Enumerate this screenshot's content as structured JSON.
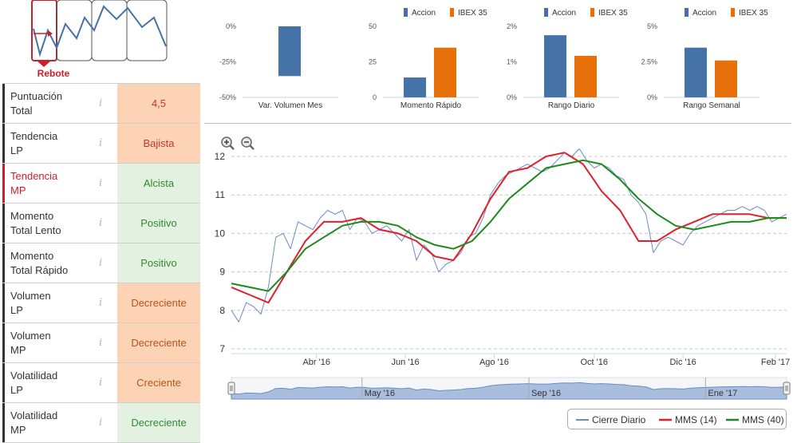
{
  "signal": {
    "label": "Rebote"
  },
  "rows": [
    {
      "label": "Puntuación\nTotal",
      "value": "4,5",
      "bg": "orange",
      "tone": "red",
      "highlight": false
    },
    {
      "label": "Tendencia\nLP",
      "value": "Bajista",
      "bg": "orange",
      "tone": "red",
      "highlight": false
    },
    {
      "label": "Tendencia\nMP",
      "value": "Alcista",
      "bg": "green",
      "tone": "green",
      "highlight": true
    },
    {
      "label": "Momento\nTotal Lento",
      "value": "Positivo",
      "bg": "green",
      "tone": "green",
      "highlight": false
    },
    {
      "label": "Momento\nTotal Rápido",
      "value": "Positivo",
      "bg": "green",
      "tone": "green",
      "highlight": false
    },
    {
      "label": "Volumen\nLP",
      "value": "Decreciente",
      "bg": "orange",
      "tone": "brown",
      "highlight": false
    },
    {
      "label": "Volumen\nMP",
      "value": "Decreciente",
      "bg": "orange",
      "tone": "brown",
      "highlight": false
    },
    {
      "label": "Volatilidad\nLP",
      "value": "Creciente",
      "bg": "orange",
      "tone": "brown",
      "highlight": false
    },
    {
      "label": "Volatilidad\nMP",
      "value": "Decreciente",
      "bg": "green",
      "tone": "green",
      "highlight": false
    }
  ],
  "info_glyph": "i",
  "colors": {
    "accion": "#4572a7",
    "ibex": "#e8700a",
    "cierre": "#6b8cc4",
    "mms14": "#e0202a",
    "mms40": "#1a8a1a",
    "signal": "#cc1f2d"
  },
  "chart_data": [
    {
      "type": "bar",
      "title": "Var. Volumen Mes",
      "legend": [
        "Accion"
      ],
      "yticks": [
        "0%",
        "-25%",
        "-50%"
      ],
      "ylim": [
        -50,
        0
      ],
      "series": [
        {
          "name": "Accion",
          "values": [
            -35
          ]
        }
      ]
    },
    {
      "type": "bar",
      "title": "Momento Rápido",
      "legend": [
        "Accion",
        "IBEX 35"
      ],
      "yticks": [
        "50",
        "25",
        "0"
      ],
      "ylim": [
        0,
        50
      ],
      "series": [
        {
          "name": "Accion",
          "values": [
            14
          ]
        },
        {
          "name": "IBEX 35",
          "values": [
            35
          ]
        }
      ]
    },
    {
      "type": "bar",
      "title": "Rango Diario",
      "legend": [
        "Accion",
        "IBEX 35"
      ],
      "yticks": [
        "2%",
        "1%",
        "0%"
      ],
      "ylim": [
        0,
        2
      ],
      "series": [
        {
          "name": "Accion",
          "values": [
            1.75
          ]
        },
        {
          "name": "IBEX 35",
          "values": [
            1.17
          ]
        }
      ]
    },
    {
      "type": "bar",
      "title": "Rango Semanal",
      "legend": [
        "Accion",
        "IBEX 35"
      ],
      "yticks": [
        "5%",
        "2.5%",
        "0%"
      ],
      "ylim": [
        0,
        5
      ],
      "series": [
        {
          "name": "Accion",
          "values": [
            3.5
          ]
        },
        {
          "name": "IBEX 35",
          "values": [
            2.6
          ]
        }
      ]
    },
    {
      "type": "line",
      "title": "",
      "yticks": [
        "12",
        "11",
        "10",
        "9",
        "8",
        "7"
      ],
      "ylim": [
        7,
        12.3
      ],
      "xlabels": [
        "Abr '16",
        "Jun '16",
        "Ago '16",
        "Oct '16",
        "Dic '16",
        "Feb '17"
      ],
      "xlabel_pos": [
        0.23,
        0.47,
        0.71,
        0.98,
        1.22,
        1.47
      ],
      "xrange": [
        0,
        1.5
      ],
      "navigator_labels": [
        "May '16",
        "Sep '16",
        "Ene '17"
      ],
      "navigator_pos": [
        0.353,
        0.804,
        1.281
      ],
      "series": [
        {
          "name": "Cierre Diario",
          "x": [
            0,
            0.02,
            0.04,
            0.06,
            0.08,
            0.1,
            0.12,
            0.14,
            0.16,
            0.18,
            0.2,
            0.22,
            0.24,
            0.26,
            0.28,
            0.3,
            0.32,
            0.34,
            0.36,
            0.38,
            0.4,
            0.42,
            0.44,
            0.46,
            0.48,
            0.5,
            0.52,
            0.54,
            0.56,
            0.58,
            0.6,
            0.62,
            0.64,
            0.66,
            0.68,
            0.7,
            0.72,
            0.74,
            0.76,
            0.78,
            0.8,
            0.82,
            0.84,
            0.86,
            0.88,
            0.9,
            0.92,
            0.94,
            0.96,
            0.98,
            1.0,
            1.02,
            1.04,
            1.06,
            1.08,
            1.1,
            1.12,
            1.14,
            1.16,
            1.18,
            1.2,
            1.22,
            1.24,
            1.26,
            1.28,
            1.3,
            1.32,
            1.34,
            1.36,
            1.38,
            1.4,
            1.42,
            1.44,
            1.46,
            1.48,
            1.5
          ],
          "values": [
            8.0,
            7.7,
            8.2,
            8.1,
            7.9,
            8.6,
            9.9,
            10.0,
            9.6,
            10.3,
            10.2,
            10.1,
            10.4,
            10.6,
            10.5,
            10.6,
            10.1,
            10.4,
            10.3,
            10.0,
            10.1,
            10.2,
            10.0,
            9.8,
            10.1,
            9.3,
            9.7,
            9.5,
            9.0,
            9.2,
            9.3,
            9.5,
            9.9,
            10.0,
            10.4,
            11.0,
            11.3,
            11.5,
            11.6,
            11.7,
            11.8,
            11.7,
            11.6,
            11.7,
            11.9,
            12.1,
            12.0,
            12.2,
            11.9,
            11.7,
            11.8,
            11.7,
            11.5,
            11.4,
            11.0,
            10.8,
            10.5,
            9.5,
            9.8,
            9.9,
            9.8,
            9.7,
            10.0,
            10.2,
            10.3,
            10.4,
            10.5,
            10.6,
            10.6,
            10.7,
            10.6,
            10.7,
            10.6,
            10.3,
            10.4,
            10.5
          ]
        },
        {
          "name": "MMS (14)",
          "x": [
            0,
            0.05,
            0.1,
            0.15,
            0.2,
            0.25,
            0.3,
            0.35,
            0.4,
            0.45,
            0.5,
            0.55,
            0.6,
            0.65,
            0.7,
            0.75,
            0.8,
            0.85,
            0.9,
            0.95,
            1.0,
            1.05,
            1.1,
            1.15,
            1.2,
            1.25,
            1.3,
            1.35,
            1.4,
            1.45,
            1.5
          ],
          "values": [
            8.6,
            8.4,
            8.2,
            9.0,
            9.8,
            10.3,
            10.3,
            10.4,
            10.1,
            10.0,
            9.8,
            9.4,
            9.3,
            10.0,
            10.9,
            11.6,
            11.7,
            12.0,
            12.1,
            11.8,
            11.1,
            10.6,
            9.8,
            9.8,
            10.1,
            10.3,
            10.5,
            10.5,
            10.5,
            10.4,
            10.4
          ]
        },
        {
          "name": "MMS (40)",
          "x": [
            0,
            0.05,
            0.1,
            0.15,
            0.2,
            0.25,
            0.3,
            0.35,
            0.4,
            0.45,
            0.5,
            0.55,
            0.6,
            0.65,
            0.7,
            0.75,
            0.8,
            0.85,
            0.9,
            0.95,
            1.0,
            1.05,
            1.1,
            1.15,
            1.2,
            1.25,
            1.3,
            1.35,
            1.4,
            1.45,
            1.5
          ],
          "values": [
            8.7,
            8.6,
            8.5,
            9.0,
            9.6,
            9.9,
            10.2,
            10.3,
            10.3,
            10.2,
            9.9,
            9.7,
            9.6,
            9.8,
            10.3,
            10.9,
            11.3,
            11.7,
            11.8,
            11.9,
            11.8,
            11.4,
            10.9,
            10.5,
            10.2,
            10.1,
            10.2,
            10.3,
            10.3,
            10.4,
            10.4
          ]
        }
      ],
      "legend": [
        "Cierre Diario",
        "MMS (14)",
        "MMS (40)"
      ]
    }
  ]
}
